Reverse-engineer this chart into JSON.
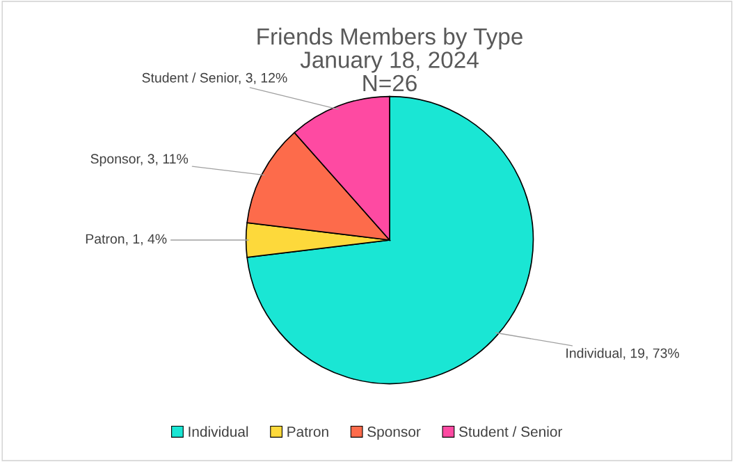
{
  "chart_data": {
    "type": "pie",
    "title": "Friends Members by Type\nJanuary 18, 2024\nN=26",
    "categories": [
      "Individual",
      "Patron",
      "Sponsor",
      "Student / Senior"
    ],
    "values": [
      19,
      1,
      3,
      3
    ],
    "colors": [
      "#1ae6d4",
      "#fdd93b",
      "#fd6b4b",
      "#fe4aa2"
    ],
    "value_labels": [
      "Individual, 19, 73%",
      "Patron, 1, 4%",
      "Sponsor, 3, 11%",
      "Student / Senior, 3, 12%"
    ],
    "legend": "bottom"
  }
}
